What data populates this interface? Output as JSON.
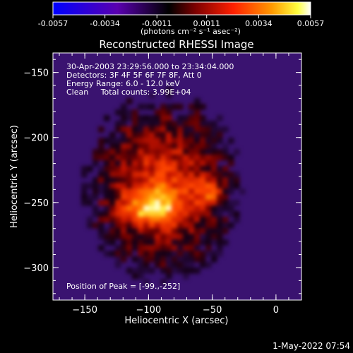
{
  "colorbar": {
    "tick_labels": [
      "-0.0057",
      "-0.0034",
      "-0.0011",
      "0.0011",
      "0.0034",
      "0.0057"
    ],
    "range": [
      -0.0057,
      0.0057
    ],
    "colormap": [
      "#0000ff",
      "#5a00b0",
      "#000000",
      "#9a0000",
      "#ff2000",
      "#ff9a00",
      "#ffff40",
      "#ffffff"
    ]
  },
  "chart_data": {
    "type": "heatmap",
    "title": "Reconstructed RHESSI Image",
    "unit_label": "(photons cm⁻² s⁻¹ asec⁻²)",
    "xlabel": "Heliocentric X (arcsec)",
    "ylabel": "Heliocentric Y (arcsec)",
    "xlim": [
      -175,
      20
    ],
    "ylim": [
      -325,
      -135
    ],
    "x_ticks": [
      -150,
      -100,
      -50,
      0
    ],
    "y_ticks": [
      -150,
      -200,
      -250,
      -300
    ],
    "annotations": [
      "30-Apr-2003 23:29:56.000 to 23:34:04.000",
      "Detectors: 3F 4F 5F 6F 7F 8F, Att 0",
      "Energy Range: 6.0 - 12.0 keV",
      "Clean     Total counts: 3.99E+04"
    ],
    "peak_label": "Position of Peak = [-99.,-252]",
    "peak": [
      -99,
      -252
    ]
  },
  "footer": {
    "timestamp": "1-May-2022 07:54"
  }
}
